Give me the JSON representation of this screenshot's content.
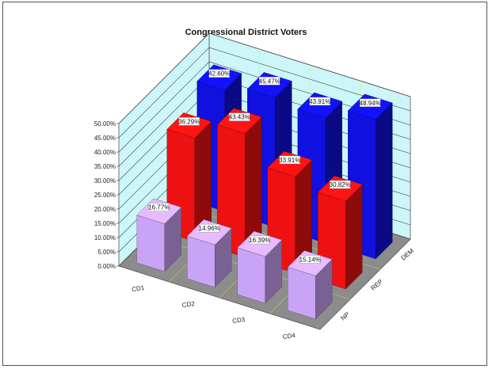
{
  "chart_data": {
    "type": "bar",
    "style": "3d-clustered-depth",
    "title": "Congressional District Voters",
    "categories": [
      "CD1",
      "CD2",
      "CD3",
      "CD4"
    ],
    "series": [
      {
        "name": "DEM",
        "values": [
          42.6,
          45.47,
          43.91,
          48.94
        ],
        "labels": [
          "42.60%",
          "45.47%",
          "43.91%",
          "48.94%"
        ],
        "color": "#1010e0"
      },
      {
        "name": "REP",
        "values": [
          36.29,
          43.43,
          33.91,
          30.82
        ],
        "labels": [
          "36.29%",
          "43.43%",
          "33.91%",
          "30.82%"
        ],
        "color": "#ee1111"
      },
      {
        "name": "NP",
        "values": [
          16.77,
          14.96,
          16.39,
          15.14
        ],
        "labels": [
          "16.77%",
          "14.96%",
          "16.39%",
          "15.14%"
        ],
        "color": "#c9a3f5"
      }
    ],
    "yticks": [
      "0.00%",
      "5.00%",
      "10.00%",
      "15.00%",
      "20.00%",
      "25.00%",
      "30.00%",
      "35.00%",
      "40.00%",
      "45.00%",
      "50.00%"
    ],
    "ylim": [
      0,
      50
    ],
    "grid": true,
    "colors": {
      "wall": "#ccf6f8",
      "floor": "#8c8c8c",
      "grid": "#444444",
      "frame": "#555555"
    }
  }
}
